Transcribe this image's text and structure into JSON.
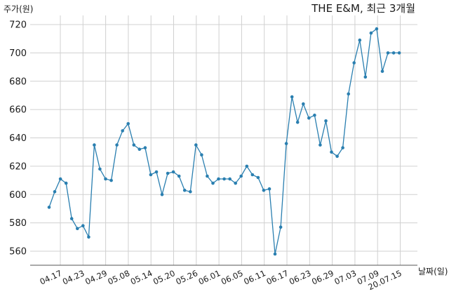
{
  "chart_data": {
    "type": "line",
    "title": "THE E&M, 최근 3개월",
    "ylabel": "주가(원)",
    "xlabel": "날짜(일)",
    "ylim": [
      550,
      728
    ],
    "yticks": [
      560,
      580,
      600,
      620,
      640,
      660,
      680,
      700,
      720
    ],
    "xticks": [
      "04.17",
      "04.23",
      "04.29",
      "05.08",
      "05.14",
      "05.20",
      "05.26",
      "06.01",
      "06.05",
      "06.11",
      "06.17",
      "06.23",
      "06.29",
      "07.03",
      "07.09",
      "20.07.15"
    ],
    "grid": true,
    "series": [
      {
        "color": "#2a7fb0",
        "values": [
          591,
          602,
          611,
          608,
          583,
          576,
          578,
          570,
          635,
          618,
          611,
          610,
          635,
          645,
          650,
          635,
          632,
          633,
          614,
          616,
          600,
          615,
          616,
          613,
          603,
          602,
          635,
          628,
          613,
          608,
          611,
          611,
          611,
          608,
          613,
          620,
          614,
          612,
          603,
          604,
          558,
          577,
          636,
          669,
          651,
          664,
          654,
          656,
          635,
          652,
          630,
          627,
          633,
          671,
          693,
          709,
          683,
          714,
          717,
          687,
          700,
          700,
          700
        ]
      }
    ]
  }
}
